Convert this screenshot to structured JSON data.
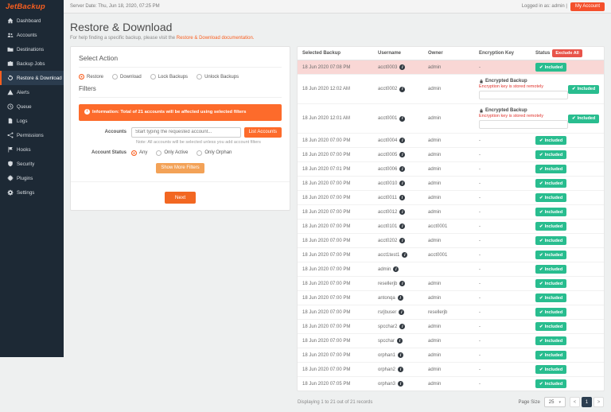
{
  "brand": {
    "logo_text": "JetBackup"
  },
  "topbar": {
    "server_date": "Server Date: Thu, Jun 18, 2020, 07:25 PM",
    "logged_in": "Logged in as: admin |",
    "my_account_label": "My Account"
  },
  "sidebar": {
    "items": [
      {
        "label": "Dashboard",
        "icon": "home-icon",
        "active": false
      },
      {
        "label": "Accounts",
        "icon": "users-icon",
        "active": false
      },
      {
        "label": "Destinations",
        "icon": "folder-icon",
        "active": false
      },
      {
        "label": "Backup Jobs",
        "icon": "briefcase-icon",
        "active": false
      },
      {
        "label": "Restore & Download",
        "icon": "restore-icon",
        "active": true
      },
      {
        "label": "Alerts",
        "icon": "warning-icon",
        "active": false
      },
      {
        "label": "Queue",
        "icon": "clock-icon",
        "active": false
      },
      {
        "label": "Logs",
        "icon": "file-icon",
        "active": false
      },
      {
        "label": "Permissions",
        "icon": "sitemap-icon",
        "active": false
      },
      {
        "label": "Hooks",
        "icon": "flag-icon",
        "active": false
      },
      {
        "label": "Security",
        "icon": "shield-icon",
        "active": false
      },
      {
        "label": "Plugins",
        "icon": "puzzle-icon",
        "active": false
      },
      {
        "label": "Settings",
        "icon": "gear-icon",
        "active": false
      }
    ]
  },
  "page": {
    "title": "Restore & Download",
    "subtitle_prefix": "For help finding a specific backup, please visit the ",
    "subtitle_link": "Restore & Download documentation."
  },
  "action_panel": {
    "heading": "Select Action",
    "action_options": [
      {
        "label": "Restore",
        "selected": true
      },
      {
        "label": "Download",
        "selected": false
      },
      {
        "label": "Lock Backups",
        "selected": false
      },
      {
        "label": "Unlock Backups",
        "selected": false
      }
    ],
    "filters_heading": "Filters",
    "info_banner": "Information: Total of 21 accounts will be affected using selected filters",
    "accounts_label": "Accounts",
    "accounts_placeholder": "Start typing the requested account...",
    "list_accounts_button": "List Accounts",
    "accounts_note": "Note: All accounts will be selected unless you add account filters",
    "account_status_label": "Account Status",
    "status_options": [
      {
        "label": "Any",
        "selected": true
      },
      {
        "label": "Only Active",
        "selected": false
      },
      {
        "label": "Only Orphan",
        "selected": false
      }
    ],
    "more_filters_button": "Show More Filters",
    "next_button": "Next"
  },
  "table": {
    "headers": [
      "Selected Backup",
      "Username",
      "Owner",
      "Encryption Key",
      "Status"
    ],
    "exclude_all_button": "Exclude All",
    "included_label": "Included",
    "encrypted_label": "Encrypted Backup",
    "encrypted_warning": "Encryption key is stored remotely",
    "rows": [
      {
        "date": "18 Jun 2020 07:08 PM",
        "username": "acct0003",
        "owner": "admin",
        "encryption": "-",
        "encrypted": false,
        "status": "Included",
        "highlighted": true
      },
      {
        "date": "18 Jun 2020 12:02 AM",
        "username": "acct0002",
        "owner": "admin",
        "encryption": "",
        "encrypted": true,
        "status": "Included",
        "highlighted": false
      },
      {
        "date": "18 Jun 2020 12:01 AM",
        "username": "acct0001",
        "owner": "admin",
        "encryption": "",
        "encrypted": true,
        "status": "Included",
        "highlighted": false
      },
      {
        "date": "18 Jun 2020 07:00 PM",
        "username": "acct0004",
        "owner": "admin",
        "encryption": "-",
        "encrypted": false,
        "status": "Included",
        "highlighted": false
      },
      {
        "date": "18 Jun 2020 07:00 PM",
        "username": "acct0005",
        "owner": "admin",
        "encryption": "-",
        "encrypted": false,
        "status": "Included",
        "highlighted": false
      },
      {
        "date": "18 Jun 2020 07:01 PM",
        "username": "acct0006",
        "owner": "admin",
        "encryption": "-",
        "encrypted": false,
        "status": "Included",
        "highlighted": false
      },
      {
        "date": "18 Jun 2020 07:00 PM",
        "username": "acct0010",
        "owner": "admin",
        "encryption": "-",
        "encrypted": false,
        "status": "Included",
        "highlighted": false
      },
      {
        "date": "18 Jun 2020 07:00 PM",
        "username": "acct0011",
        "owner": "admin",
        "encryption": "-",
        "encrypted": false,
        "status": "Included",
        "highlighted": false
      },
      {
        "date": "18 Jun 2020 07:00 PM",
        "username": "acct0012",
        "owner": "admin",
        "encryption": "-",
        "encrypted": false,
        "status": "Included",
        "highlighted": false
      },
      {
        "date": "18 Jun 2020 07:00 PM",
        "username": "acct0101",
        "owner": "acct0001",
        "encryption": "-",
        "encrypted": false,
        "status": "Included",
        "highlighted": false
      },
      {
        "date": "18 Jun 2020 07:00 PM",
        "username": "acct0202",
        "owner": "admin",
        "encryption": "-",
        "encrypted": false,
        "status": "Included",
        "highlighted": false
      },
      {
        "date": "18 Jun 2020 07:00 PM",
        "username": "acct1test1",
        "owner": "acct0001",
        "encryption": "-",
        "encrypted": false,
        "status": "Included",
        "highlighted": false
      },
      {
        "date": "18 Jun 2020 07:00 PM",
        "username": "admin",
        "owner": "",
        "encryption": "-",
        "encrypted": false,
        "status": "Included",
        "highlighted": false
      },
      {
        "date": "18 Jun 2020 07:00 PM",
        "username": "resellerjb",
        "owner": "admin",
        "encryption": "-",
        "encrypted": false,
        "status": "Included",
        "highlighted": false
      },
      {
        "date": "18 Jun 2020 07:00 PM",
        "username": "antonqa",
        "owner": "admin",
        "encryption": "-",
        "encrypted": false,
        "status": "Included",
        "highlighted": false
      },
      {
        "date": "18 Jun 2020 07:00 PM",
        "username": "rsrjbuser",
        "owner": "resellerjb",
        "encryption": "-",
        "encrypted": false,
        "status": "Included",
        "highlighted": false
      },
      {
        "date": "18 Jun 2020 07:00 PM",
        "username": "spcchar2",
        "owner": "admin",
        "encryption": "-",
        "encrypted": false,
        "status": "Included",
        "highlighted": false
      },
      {
        "date": "18 Jun 2020 07:00 PM",
        "username": "spcchar",
        "owner": "admin",
        "encryption": "-",
        "encrypted": false,
        "status": "Included",
        "highlighted": false
      },
      {
        "date": "18 Jun 2020 07:00 PM",
        "username": "orphan1",
        "owner": "admin",
        "encryption": "-",
        "encrypted": false,
        "status": "Included",
        "highlighted": false
      },
      {
        "date": "18 Jun 2020 07:00 PM",
        "username": "orphan2",
        "owner": "admin",
        "encryption": "-",
        "encrypted": false,
        "status": "Included",
        "highlighted": false
      },
      {
        "date": "18 Jun 2020 07:05 PM",
        "username": "orphan3",
        "owner": "admin",
        "encryption": "-",
        "encrypted": false,
        "status": "Included",
        "highlighted": false
      }
    ],
    "footer": {
      "summary": "Displaying 1 to 21 out of 21 records",
      "page_size_label": "Page Size",
      "page_size_value": "25",
      "pagination": {
        "prev": "<",
        "current": "1",
        "next": ">"
      }
    }
  },
  "colors": {
    "accent_orange": "#f95e1f",
    "banner_orange": "#fd6b2b",
    "light_orange": "#f3a257",
    "success_green": "#29bd8f",
    "danger_red": "#e8544a",
    "highlight_pink": "#f9d7d5",
    "sidebar_dark": "#1d2935"
  }
}
